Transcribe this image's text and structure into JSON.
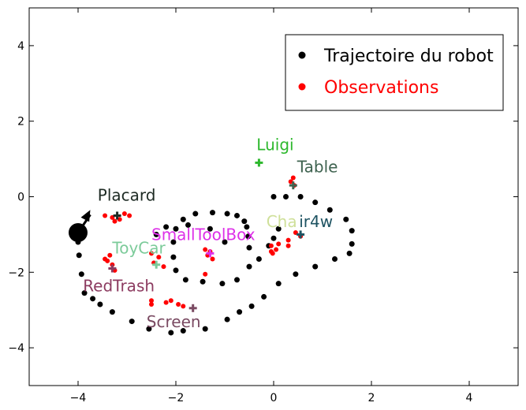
{
  "chart_data": {
    "type": "scatter",
    "xlim": [
      -5,
      5
    ],
    "ylim": [
      -5,
      5
    ],
    "xticks": [
      -4,
      -2,
      0,
      2,
      4
    ],
    "yticks": [
      -4,
      -2,
      0,
      2,
      4
    ],
    "x_tick_labels": [
      "−4",
      "−2",
      "0",
      "2",
      "4"
    ],
    "y_tick_labels": [
      "−4",
      "−2",
      "0",
      "2",
      "4"
    ],
    "grid": false,
    "legend": {
      "placement": "top-right",
      "entries": [
        {
          "label": "Trajectoire du robot",
          "color": "#000000"
        },
        {
          "label": "Observations",
          "color": "#ff0000"
        }
      ]
    },
    "series": [
      {
        "name": "Trajectoire du robot",
        "color": "#000000",
        "points": [
          [
            -4.0,
            -0.95
          ],
          [
            -4.0,
            -1.2
          ],
          [
            -3.98,
            -1.55
          ],
          [
            -3.93,
            -2.05
          ],
          [
            -3.87,
            -2.55
          ],
          [
            -3.7,
            -2.7
          ],
          [
            -3.55,
            -2.85
          ],
          [
            -3.3,
            -3.05
          ],
          [
            -2.9,
            -3.3
          ],
          [
            -2.55,
            -3.5
          ],
          [
            -2.1,
            -3.6
          ],
          [
            -1.85,
            -3.55
          ],
          [
            -1.4,
            -3.5
          ],
          [
            -0.95,
            -3.25
          ],
          [
            -0.7,
            -3.05
          ],
          [
            -0.45,
            -2.9
          ],
          [
            -0.2,
            -2.65
          ],
          [
            0.1,
            -2.3
          ],
          [
            0.45,
            -2.05
          ],
          [
            0.85,
            -1.85
          ],
          [
            1.25,
            -1.65
          ],
          [
            1.55,
            -1.5
          ],
          [
            1.6,
            -1.25
          ],
          [
            1.6,
            -0.9
          ],
          [
            1.48,
            -0.6
          ],
          [
            1.15,
            -0.35
          ],
          [
            0.85,
            -0.15
          ],
          [
            0.55,
            0.0
          ],
          [
            0.25,
            0.0
          ],
          [
            0.0,
            0.0
          ],
          [
            0.1,
            -0.85
          ],
          [
            0.0,
            -1.1
          ],
          [
            -0.1,
            -1.3
          ],
          [
            -0.3,
            -1.65
          ],
          [
            -0.5,
            -1.85
          ],
          [
            -0.75,
            -2.2
          ],
          [
            -1.05,
            -2.3
          ],
          [
            -1.45,
            -2.25
          ],
          [
            -1.8,
            -2.2
          ],
          [
            -2.0,
            -1.95
          ],
          [
            -2.05,
            -1.6
          ],
          [
            -2.05,
            -1.2
          ],
          [
            -2.0,
            -0.85
          ],
          [
            -1.85,
            -0.6
          ],
          [
            -1.6,
            -0.45
          ],
          [
            -1.25,
            -0.42
          ],
          [
            -0.95,
            -0.45
          ],
          [
            -0.75,
            -0.5
          ],
          [
            -0.6,
            -0.65
          ],
          [
            -0.55,
            -0.8
          ],
          [
            -0.52,
            -1.05
          ],
          [
            -0.5,
            -1.35
          ],
          [
            -1.0,
            -1.2
          ],
          [
            -1.3,
            -0.85
          ],
          [
            -1.75,
            -0.75
          ],
          [
            -2.2,
            -0.8
          ],
          [
            -2.4,
            -1.0
          ]
        ]
      },
      {
        "name": "Observations",
        "color": "#ff0000",
        "points": [
          [
            -3.45,
            -0.5
          ],
          [
            -3.3,
            -0.55
          ],
          [
            -3.25,
            -0.65
          ],
          [
            -3.15,
            -0.6
          ],
          [
            -3.05,
            -0.45
          ],
          [
            -2.95,
            -0.5
          ],
          [
            -3.45,
            -1.65
          ],
          [
            -3.3,
            -1.8
          ],
          [
            -3.35,
            -1.55
          ],
          [
            -3.25,
            -1.95
          ],
          [
            -3.4,
            -1.7
          ],
          [
            -2.35,
            -1.6
          ],
          [
            -2.45,
            -1.75
          ],
          [
            -2.25,
            -1.85
          ],
          [
            -2.5,
            -1.5
          ],
          [
            -2.1,
            -2.75
          ],
          [
            -1.95,
            -2.85
          ],
          [
            -1.85,
            -2.9
          ],
          [
            -2.2,
            -2.8
          ],
          [
            -1.4,
            -1.4
          ],
          [
            -1.35,
            -1.55
          ],
          [
            -1.3,
            -1.45
          ],
          [
            -1.25,
            -1.65
          ],
          [
            -1.4,
            -2.05
          ],
          [
            -2.5,
            -2.75
          ],
          [
            -2.5,
            -2.85
          ],
          [
            -0.05,
            -1.3
          ],
          [
            -0.02,
            -1.5
          ],
          [
            0.05,
            -1.4
          ],
          [
            0.1,
            -1.25
          ],
          [
            -0.05,
            -1.45
          ],
          [
            0.3,
            -1.15
          ],
          [
            0.3,
            -1.3
          ],
          [
            0.45,
            -0.95
          ],
          [
            0.55,
            -1.05
          ],
          [
            0.4,
            0.5
          ],
          [
            0.35,
            0.4
          ],
          [
            0.42,
            0.3
          ]
        ]
      }
    ],
    "labeled_objects": [
      {
        "label": "Luigi",
        "x": -0.3,
        "y": 0.9,
        "color": "#2db82d"
      },
      {
        "label": "Table",
        "x": 0.4,
        "y": 0.3,
        "color": "#3f6350"
      },
      {
        "label": "Placard",
        "x": -3.2,
        "y": -0.5,
        "color": "#1e2b24"
      },
      {
        "label": "Chair4w",
        "x": 0.55,
        "y": -1.0,
        "color": "#1e5362"
      },
      {
        "label": "SmallToolBox",
        "x": -1.3,
        "y": -1.5,
        "color": "#dd30e8"
      },
      {
        "label": "ToyCar",
        "x": -2.4,
        "y": -1.8,
        "color": "#7ccb9a"
      },
      {
        "label": "RedTrash",
        "x": -3.3,
        "y": -1.9,
        "color": "#8c3b60"
      },
      {
        "label": "Screen",
        "x": -1.65,
        "y": -2.95,
        "color": "#7a4a62"
      }
    ],
    "text_annotations": [
      {
        "text": "Luigi",
        "x": -0.35,
        "y": 1.23,
        "color": "#2db82d"
      },
      {
        "text": "Table",
        "x": 0.48,
        "y": 0.65,
        "color": "#3f6350"
      },
      {
        "text": "Placard",
        "x": -3.6,
        "y": -0.1,
        "color": "#1e2b24"
      },
      {
        "text": "Cha",
        "x": -0.15,
        "y": -0.8,
        "color": "#cfe09a"
      },
      {
        "text": "ir4w",
        "x": 0.52,
        "y": -0.8,
        "color": "#1e5362"
      },
      {
        "text": "SmallToolBox",
        "x": -2.5,
        "y": -1.15,
        "color": "#dd30e8"
      },
      {
        "text": "ToyCar",
        "x": -3.3,
        "y": -1.5,
        "color": "#7ccb9a"
      },
      {
        "text": "RedTrash",
        "x": -3.9,
        "y": -2.5,
        "color": "#8c3b60"
      },
      {
        "text": "Screen",
        "x": -2.6,
        "y": -3.45,
        "color": "#7a4a62"
      }
    ],
    "robot": {
      "x": -4.0,
      "y": -0.95,
      "heading_to": [
        -3.75,
        -0.35
      ],
      "color": "#000000"
    }
  }
}
